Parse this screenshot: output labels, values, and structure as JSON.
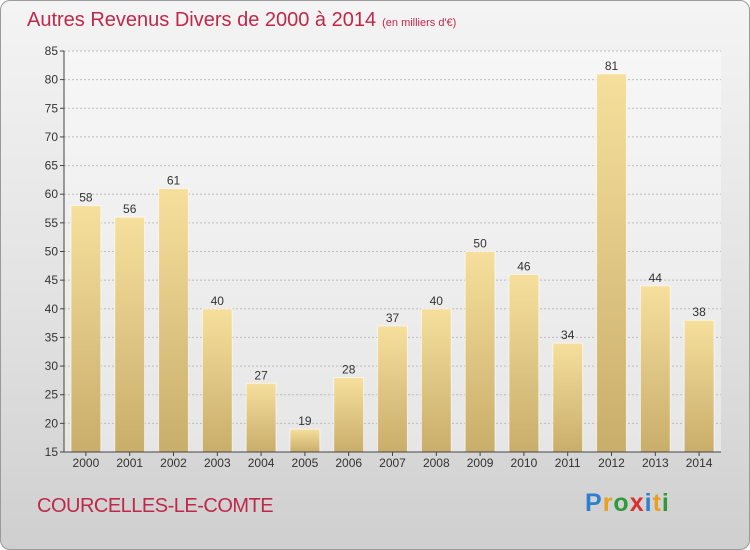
{
  "header": {
    "title": "Autres Revenus Divers de 2000 à 2014",
    "subtitle": "(en milliers d'€)"
  },
  "location": "COURCELLES-LE-COMTE",
  "logo": {
    "letters": [
      {
        "char": "P",
        "color": "#2f7fd0"
      },
      {
        "char": "r",
        "color": "#e8a020"
      },
      {
        "char": "o",
        "color": "#2f9a3a"
      },
      {
        "char": "x",
        "color": "#d83030"
      },
      {
        "char": "i",
        "color": "#2f7fd0"
      },
      {
        "char": "t",
        "color": "#e8a020"
      },
      {
        "char": "i",
        "color": "#2f9a3a"
      }
    ]
  },
  "chart_data": {
    "type": "bar",
    "title": "Autres Revenus Divers de 2000 à 2014",
    "subtitle": "(en milliers d'€)",
    "categories": [
      "2000",
      "2001",
      "2002",
      "2003",
      "2004",
      "2005",
      "2006",
      "2007",
      "2008",
      "2009",
      "2010",
      "2011",
      "2012",
      "2013",
      "2014"
    ],
    "values": [
      58,
      56,
      61,
      40,
      27,
      19,
      28,
      37,
      40,
      50,
      46,
      34,
      81,
      44,
      38
    ],
    "ylim": [
      15,
      85
    ],
    "yticks": [
      15,
      20,
      25,
      30,
      35,
      40,
      45,
      50,
      55,
      60,
      65,
      70,
      75,
      80,
      85
    ],
    "grid": true,
    "legend": "none",
    "colors": {
      "bar_light": "#f6df9c",
      "bar_dark": "#c9ad6b",
      "grid": "#bdbdbd",
      "axis": "#444444",
      "text": "#333333"
    }
  }
}
